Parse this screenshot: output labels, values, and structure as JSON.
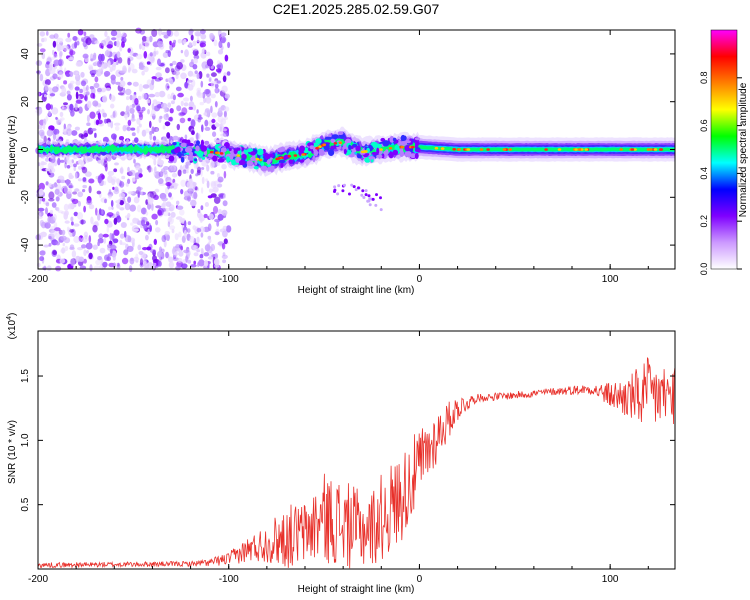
{
  "title": "C2E1.2025.285.02.59.G07",
  "colors": {
    "axis": "#000000",
    "snr_line": "#e8302a",
    "colormap": [
      "#ffffff",
      "#cc99ff",
      "#7f00ff",
      "#0000ff",
      "#00ffff",
      "#00ff00",
      "#ffff00",
      "#ff7f00",
      "#ff0000",
      "#ff00ff"
    ]
  },
  "chart_data": [
    {
      "type": "heatmap",
      "name": "spectrogram",
      "xlabel": "Height of straight line (km)",
      "ylabel": "Frequency (Hz)",
      "xlim": [
        -200,
        134
      ],
      "ylim": [
        -50,
        50
      ],
      "x_ticks": [
        -200,
        -100,
        0,
        100
      ],
      "x_tick_labels": [
        "-200",
        "-100",
        "0",
        "100"
      ],
      "y_ticks": [
        -40,
        -20,
        0,
        20,
        40
      ],
      "y_tick_labels": [
        "-40",
        "-20",
        "0",
        "20",
        "40"
      ],
      "colorbar": {
        "label": "Normalized spectral amplitude",
        "range": [
          0,
          1
        ],
        "ticks": [
          0.0,
          0.2,
          0.4,
          0.6,
          0.8
        ],
        "tick_labels": [
          "0.0",
          "0.2",
          "0.4",
          "0.6",
          "0.8"
        ]
      },
      "trace_center_hz": [
        {
          "x": -200,
          "y": 0
        },
        {
          "x": -130,
          "y": 0
        },
        {
          "x": -110,
          "y": -1
        },
        {
          "x": -100,
          "y": -2
        },
        {
          "x": -90,
          "y": -3
        },
        {
          "x": -80,
          "y": -5
        },
        {
          "x": -70,
          "y": -3
        },
        {
          "x": -60,
          "y": -2
        },
        {
          "x": -50,
          "y": 2
        },
        {
          "x": -40,
          "y": 3
        },
        {
          "x": -30,
          "y": -1
        },
        {
          "x": -20,
          "y": 0
        },
        {
          "x": -10,
          "y": 1
        },
        {
          "x": 0,
          "y": 1
        },
        {
          "x": 20,
          "y": 0
        },
        {
          "x": 60,
          "y": 0
        },
        {
          "x": 100,
          "y": 0
        },
        {
          "x": 134,
          "y": 0
        }
      ],
      "noise_region_km": [
        -200,
        -100
      ]
    },
    {
      "type": "line",
      "name": "snr",
      "xlabel": "Height of straight line (km)",
      "ylabel": "SNR (10 * v/v)",
      "y_scale_note": "(x10",
      "y_scale_exp": "4",
      "y_scale_close": ")",
      "xlim": [
        -200,
        134
      ],
      "ylim": [
        0,
        1.85
      ],
      "x_ticks": [
        -200,
        -100,
        0,
        100
      ],
      "x_tick_labels": [
        "-200",
        "-100",
        "0",
        "100"
      ],
      "y_ticks": [
        0.5,
        1.0,
        1.5
      ],
      "y_tick_labels": [
        "0.5",
        "1.0",
        "1.5"
      ],
      "envelope": [
        {
          "x": -200,
          "mean": 0.03,
          "amp": 0.02
        },
        {
          "x": -120,
          "mean": 0.04,
          "amp": 0.02
        },
        {
          "x": -110,
          "mean": 0.05,
          "amp": 0.03
        },
        {
          "x": -100,
          "mean": 0.08,
          "amp": 0.05
        },
        {
          "x": -90,
          "mean": 0.15,
          "amp": 0.1
        },
        {
          "x": -80,
          "mean": 0.2,
          "amp": 0.15
        },
        {
          "x": -70,
          "mean": 0.25,
          "amp": 0.25
        },
        {
          "x": -60,
          "mean": 0.28,
          "amp": 0.25
        },
        {
          "x": -50,
          "mean": 0.4,
          "amp": 0.35
        },
        {
          "x": -40,
          "mean": 0.35,
          "amp": 0.35
        },
        {
          "x": -30,
          "mean": 0.3,
          "amp": 0.3
        },
        {
          "x": -25,
          "mean": 0.32,
          "amp": 0.3
        },
        {
          "x": -20,
          "mean": 0.4,
          "amp": 0.35
        },
        {
          "x": -10,
          "mean": 0.55,
          "amp": 0.35
        },
        {
          "x": 0,
          "mean": 0.8,
          "amp": 0.3
        },
        {
          "x": 10,
          "mean": 1.05,
          "amp": 0.2
        },
        {
          "x": 20,
          "mean": 1.25,
          "amp": 0.1
        },
        {
          "x": 30,
          "mean": 1.33,
          "amp": 0.03
        },
        {
          "x": 50,
          "mean": 1.35,
          "amp": 0.03
        },
        {
          "x": 70,
          "mean": 1.38,
          "amp": 0.03
        },
        {
          "x": 90,
          "mean": 1.4,
          "amp": 0.04
        },
        {
          "x": 100,
          "mean": 1.35,
          "amp": 0.1
        },
        {
          "x": 110,
          "mean": 1.33,
          "amp": 0.18
        },
        {
          "x": 120,
          "mean": 1.35,
          "amp": 0.3
        },
        {
          "x": 134,
          "mean": 1.35,
          "amp": 0.22
        }
      ]
    }
  ]
}
